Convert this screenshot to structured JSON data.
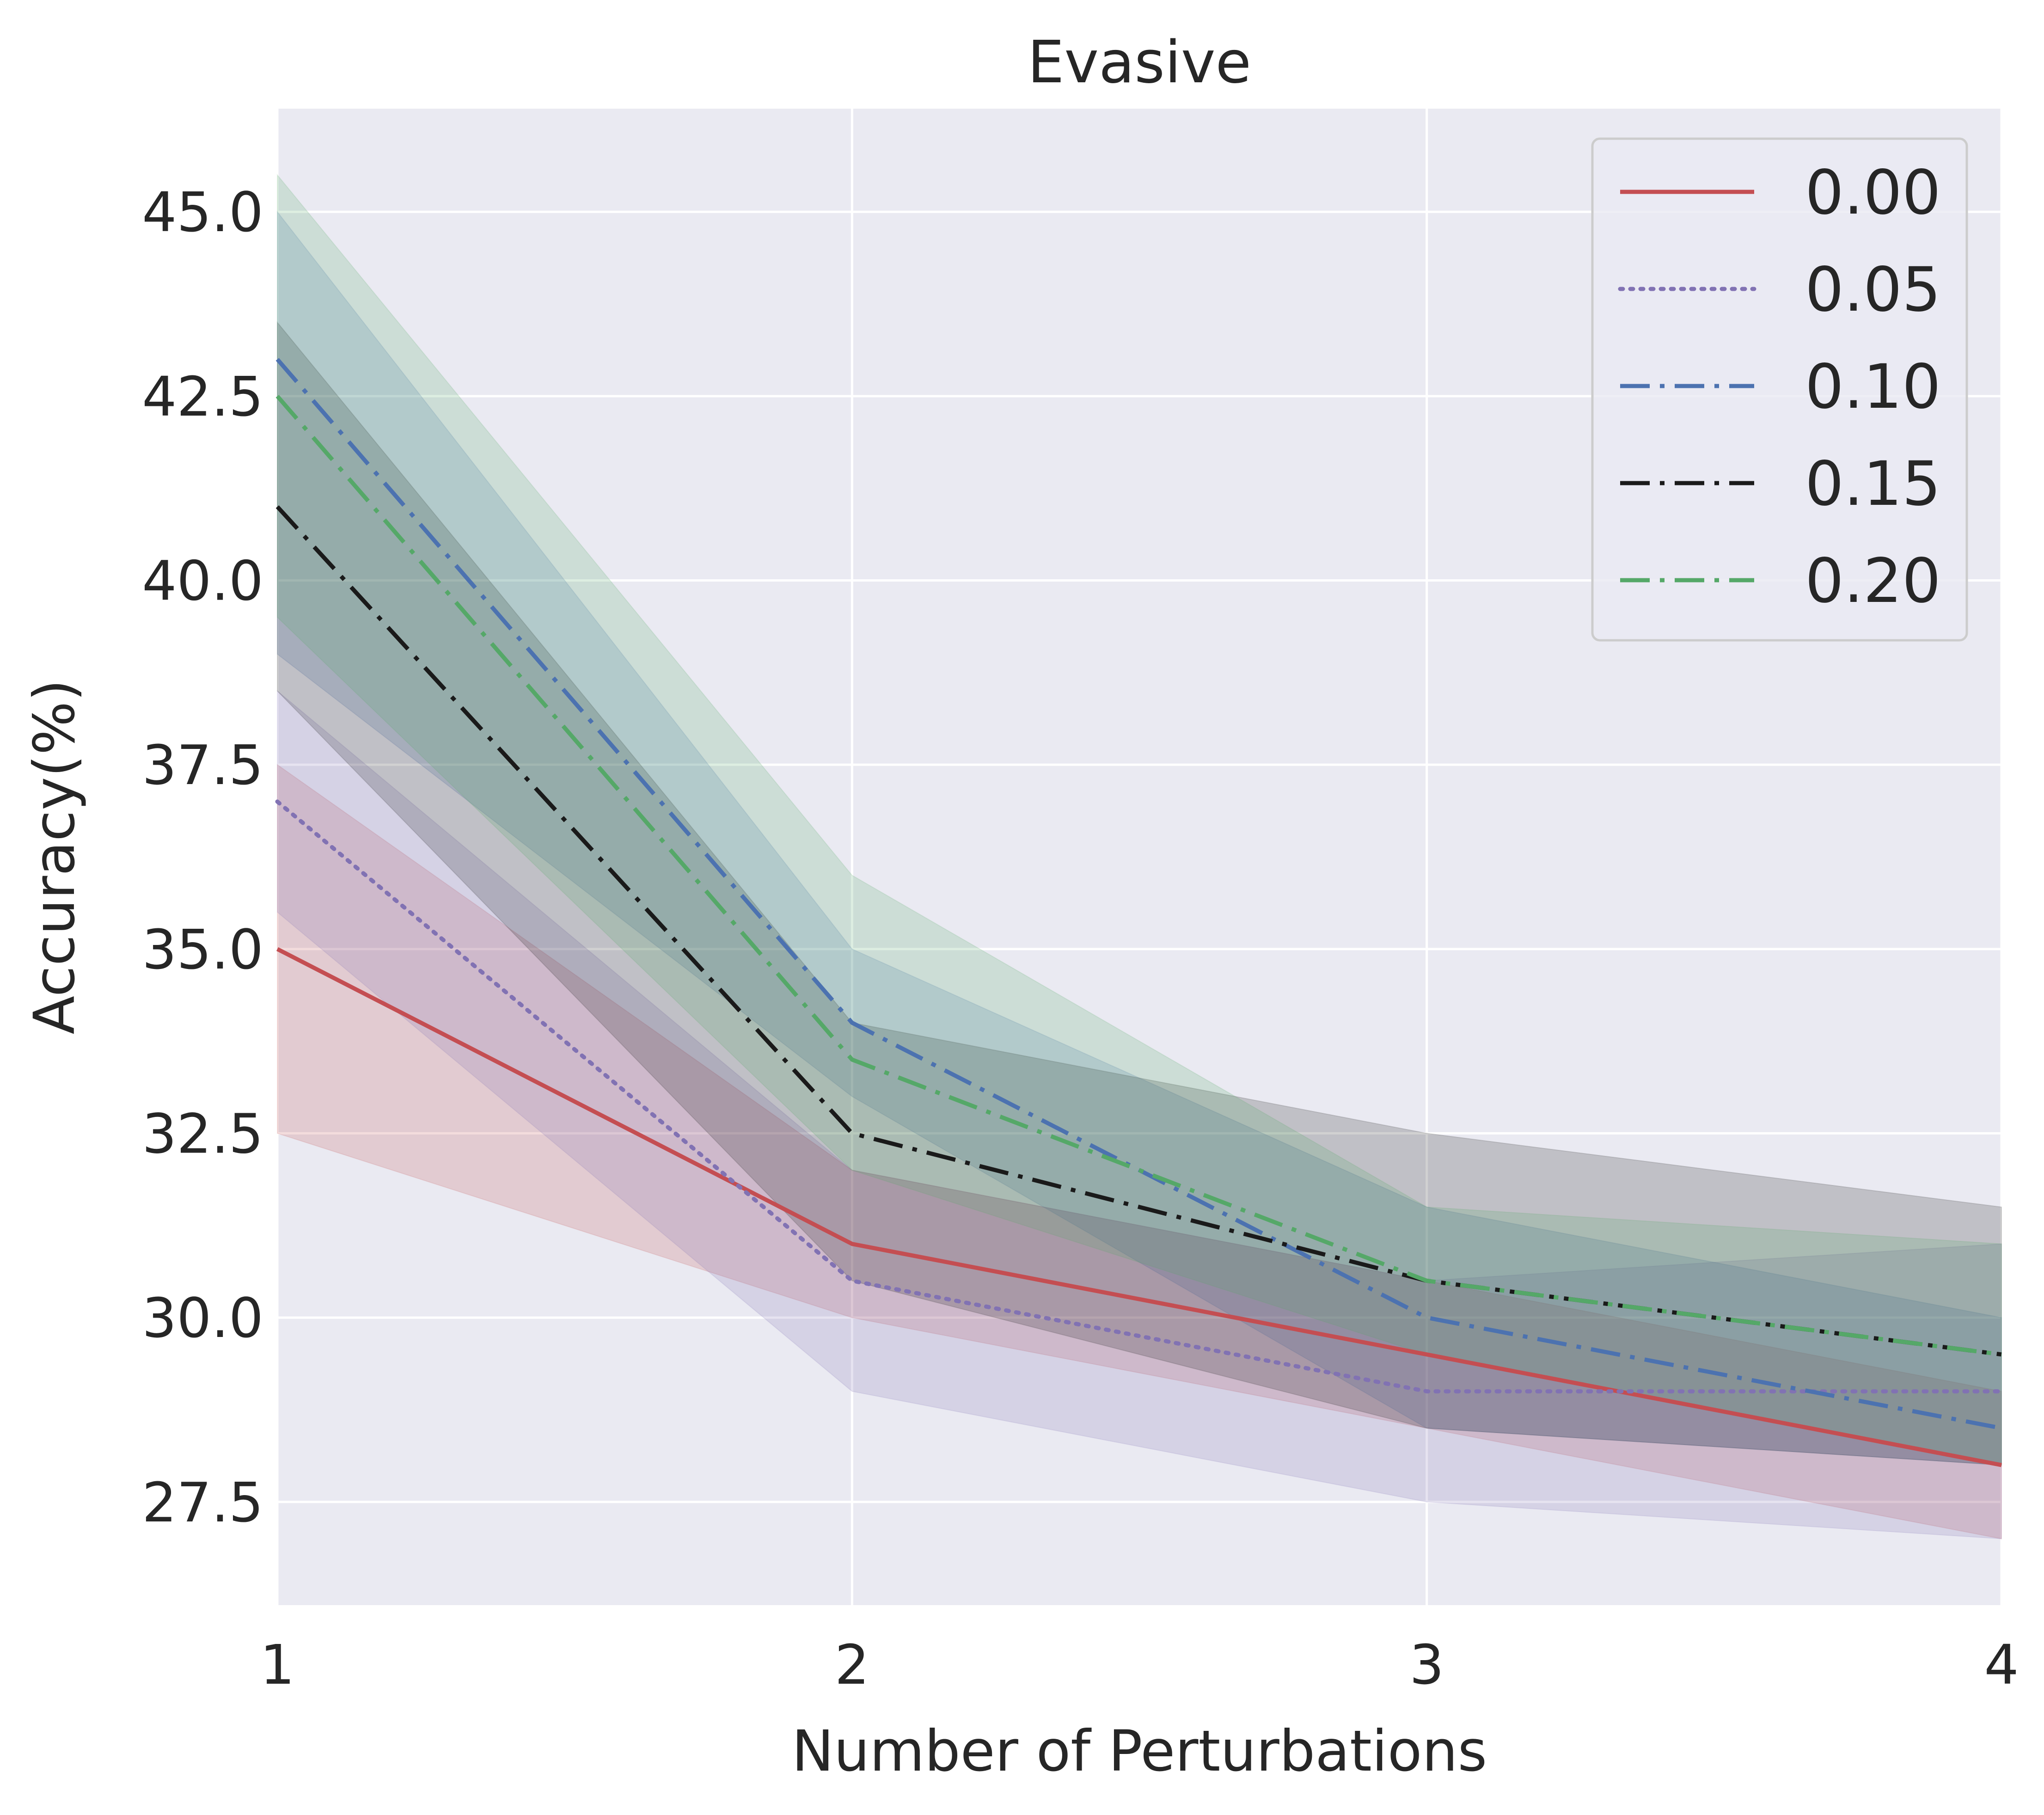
{
  "chart_data": {
    "type": "line",
    "title": "Evasive",
    "xlabel": "Number of Perturbations",
    "ylabel": "Accuracy(%)",
    "x": [
      1,
      2,
      3,
      4
    ],
    "xticks": [
      "1",
      "2",
      "3",
      "4"
    ],
    "xlim": [
      1,
      4
    ],
    "yticks": [
      "27.5",
      "30.0",
      "32.5",
      "35.0",
      "37.5",
      "40.0",
      "42.5",
      "45.0"
    ],
    "ylim": [
      26.1,
      46.4
    ],
    "grid": true,
    "legend_position": "top-right",
    "background_color": "#eaeaf2",
    "series": [
      {
        "name": "0.00",
        "color": "#c44e52",
        "linestyle": "solid",
        "values": [
          35.0,
          31.0,
          29.5,
          28.0
        ],
        "lower": [
          32.5,
          30.0,
          28.5,
          27.0
        ],
        "upper": [
          37.5,
          32.0,
          30.5,
          29.0
        ]
      },
      {
        "name": "0.05",
        "color": "#8172b3",
        "linestyle": "dotted",
        "values": [
          37.0,
          30.5,
          29.0,
          29.0
        ],
        "lower": [
          35.5,
          29.0,
          27.5,
          27.0
        ],
        "upper": [
          38.5,
          32.0,
          30.5,
          31.0
        ]
      },
      {
        "name": "0.10",
        "color": "#4c72b0",
        "linestyle": "dashdot",
        "values": [
          43.0,
          34.0,
          30.0,
          28.5
        ],
        "lower": [
          39.0,
          33.0,
          28.5,
          28.0
        ],
        "upper": [
          45.0,
          35.0,
          31.5,
          30.0
        ]
      },
      {
        "name": "0.15",
        "color": "#1a1a1a",
        "linestyle": "dashdot",
        "values": [
          41.0,
          32.5,
          30.5,
          29.5
        ],
        "lower": [
          38.5,
          30.5,
          28.5,
          28.0
        ],
        "upper": [
          43.5,
          34.0,
          32.5,
          31.5
        ]
      },
      {
        "name": "0.20",
        "color": "#55a868",
        "linestyle": "dashdot",
        "values": [
          42.5,
          33.5,
          30.5,
          29.5
        ],
        "lower": [
          39.5,
          32.0,
          29.5,
          28.0
        ],
        "upper": [
          45.5,
          36.0,
          31.5,
          31.0
        ]
      }
    ]
  }
}
